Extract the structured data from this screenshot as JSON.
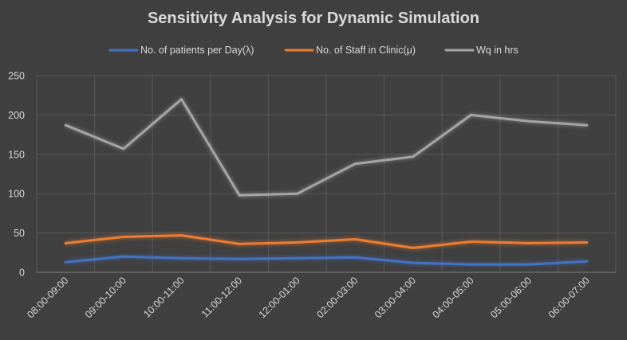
{
  "chart_data": {
    "type": "line",
    "title": "Sensitivity Analysis for Dynamic Simulation",
    "xlabel": "",
    "ylabel": "",
    "categories": [
      "08:00-09:00",
      "09:00-10:00",
      "10:00-11:00",
      "11:00-12:00",
      "12:00-01:00",
      "02:00-03:00",
      "03:00-04:00",
      "04:00-05:00",
      "05:00-06:00",
      "06:00-07:00"
    ],
    "ylim": [
      0,
      250
    ],
    "yticks": [
      "0",
      "50",
      "100",
      "150",
      "200",
      "250"
    ],
    "grid": true,
    "legend_position": "top",
    "series": [
      {
        "name": "No. of patients per Day(λ)",
        "color": "#4472c4",
        "values": [
          13,
          20,
          18,
          17,
          18,
          19,
          12,
          10,
          10,
          14
        ]
      },
      {
        "name": "No. of Staff in Clinic(μ)",
        "color": "#ed7d31",
        "values": [
          37,
          45,
          47,
          36,
          38,
          42,
          31,
          39,
          37,
          38
        ]
      },
      {
        "name": "Wq in hrs",
        "color": "#a5a5a5",
        "values": [
          187,
          157,
          220,
          98,
          100,
          138,
          147,
          200,
          192,
          187
        ]
      }
    ]
  }
}
